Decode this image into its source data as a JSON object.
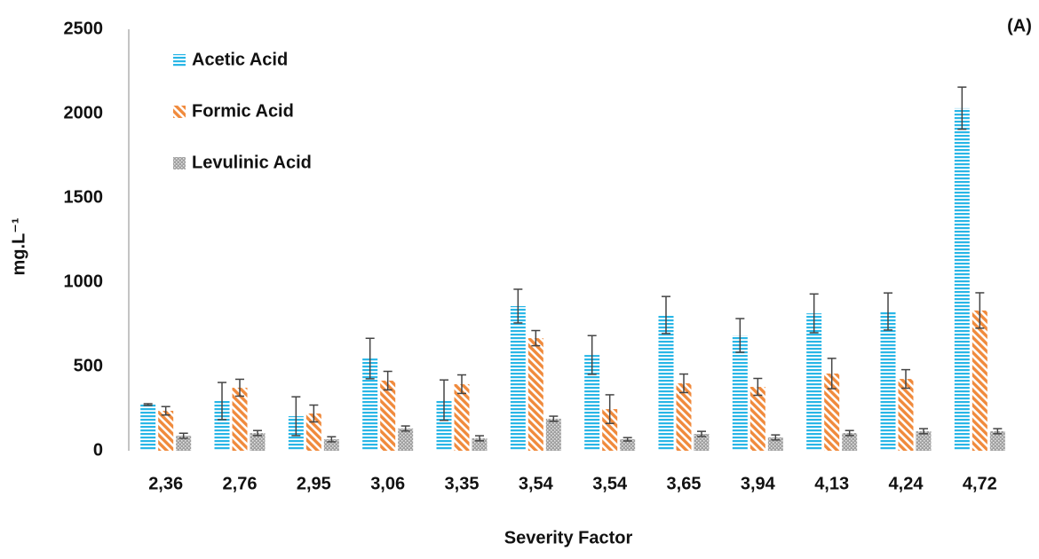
{
  "chart_data": {
    "type": "bar",
    "panel_label": "(A)",
    "x_label": "Severity Factor",
    "y_label": "mg.L⁻¹",
    "categories": [
      "2,36",
      "2,76",
      "2,95",
      "3,06",
      "3,35",
      "3,54",
      "3,54",
      "3,65",
      "3,94",
      "4,13",
      "4,24",
      "4,72"
    ],
    "series": [
      {
        "name": "Acetic Acid",
        "color": "#29b6e6",
        "pattern": "horizontal",
        "values": [
          274,
          295,
          205,
          547,
          300,
          858,
          568,
          805,
          684,
          815,
          826,
          2032
        ],
        "errors": [
          5,
          110,
          115,
          120,
          120,
          100,
          115,
          110,
          100,
          115,
          110,
          125
        ]
      },
      {
        "name": "Formic Acid",
        "color": "#f08a3c",
        "pattern": "diagonal",
        "values": [
          237,
          374,
          221,
          416,
          395,
          668,
          247,
          400,
          379,
          458,
          426,
          832
        ],
        "errors": [
          25,
          50,
          50,
          55,
          55,
          45,
          85,
          55,
          50,
          90,
          55,
          105
        ]
      },
      {
        "name": "Levulinic Acid",
        "color": "#a0a0a0",
        "pattern": "dots",
        "values": [
          89,
          105,
          68,
          132,
          74,
          190,
          68,
          100,
          79,
          105,
          116,
          116
        ],
        "errors": [
          15,
          15,
          15,
          15,
          15,
          15,
          10,
          15,
          15,
          15,
          15,
          15
        ]
      }
    ],
    "ylim": [
      0,
      2500
    ],
    "yticks": [
      0,
      500,
      1000,
      1500,
      2000,
      2500
    ],
    "grid": false,
    "legend": "top-left"
  }
}
